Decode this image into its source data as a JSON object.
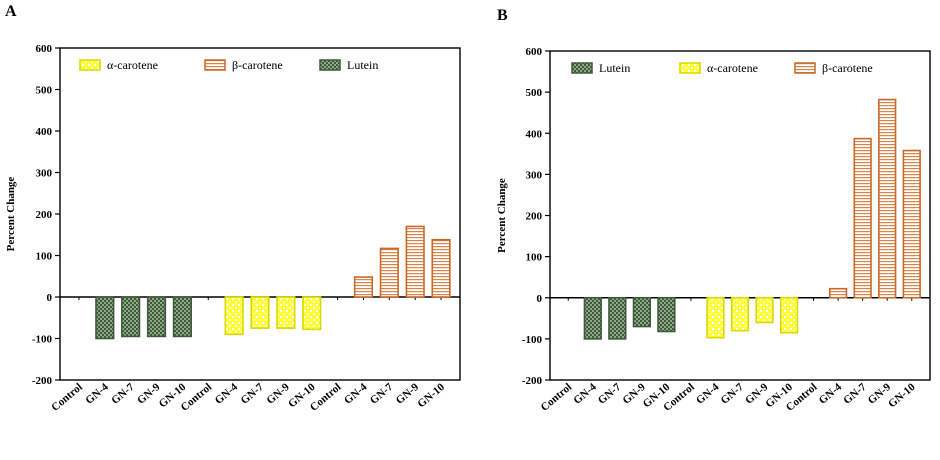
{
  "chart_data": [
    {
      "panel": "A",
      "type": "bar",
      "ylabel": "Percent Change",
      "ylim": [
        -200,
        600
      ],
      "yticks": [
        -200,
        -100,
        0,
        100,
        200,
        300,
        400,
        500,
        600
      ],
      "categories": [
        "Control",
        "GN-4",
        "GN-7",
        "GN-9",
        "GN-10"
      ],
      "legend_position": "top",
      "legend_order": [
        "α-carotene",
        "β-carotene",
        "Lutein"
      ],
      "series": [
        {
          "name": "Lutein",
          "pattern": "lutein",
          "values": [
            0,
            -100,
            -95,
            -95,
            -95
          ]
        },
        {
          "name": "α-carotene",
          "pattern": "alpha",
          "values": [
            0,
            -90,
            -75,
            -75,
            -78
          ]
        },
        {
          "name": "β-carotene",
          "pattern": "beta",
          "values": [
            0,
            48,
            117,
            170,
            138
          ]
        }
      ]
    },
    {
      "panel": "B",
      "type": "bar",
      "ylabel": "Percent Change",
      "ylim": [
        -200,
        600
      ],
      "yticks": [
        -200,
        -100,
        0,
        100,
        200,
        300,
        400,
        500,
        600
      ],
      "categories": [
        "Control",
        "GN-4",
        "GN-7",
        "GN-9",
        "GN-10"
      ],
      "legend_position": "top",
      "legend_order": [
        "Lutein",
        "α-carotene",
        "β-carotene"
      ],
      "series": [
        {
          "name": "Lutein",
          "pattern": "lutein",
          "values": [
            0,
            -100,
            -100,
            -70,
            -82
          ]
        },
        {
          "name": "α-carotene",
          "pattern": "alpha",
          "values": [
            0,
            -97,
            -80,
            -60,
            -85
          ]
        },
        {
          "name": "β-carotene",
          "pattern": "beta",
          "values": [
            0,
            22,
            387,
            482,
            358
          ]
        }
      ]
    }
  ],
  "colors": {
    "lutein_fill": "#8fa88a",
    "lutein_stroke": "#3f5a3a",
    "alpha_fill": "#ffff33",
    "alpha_stroke": "#d8d800",
    "beta_fill": "#ffffff",
    "beta_stroke": "#c8692a"
  }
}
